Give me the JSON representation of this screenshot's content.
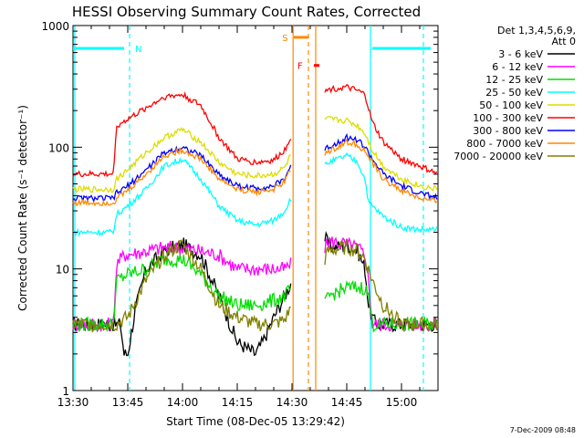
{
  "chart_data": {
    "type": "line",
    "title": "HESSI Observing Summary Count Rates, Corrected",
    "xlabel": "Start Time (08-Dec-05 13:29:42)",
    "ylabel": "Corrected Count Rate (s⁻¹ detector⁻¹)",
    "yscale": "log",
    "ylim": [
      1,
      1000
    ],
    "xlim_minutes": [
      0,
      100
    ],
    "x_unit": "minutes after 13:30",
    "x_ticks": [
      {
        "min": 0,
        "label": "13:30"
      },
      {
        "min": 15,
        "label": "13:45"
      },
      {
        "min": 30,
        "label": "14:00"
      },
      {
        "min": 45,
        "label": "14:15"
      },
      {
        "min": 60,
        "label": "14:30"
      },
      {
        "min": 75,
        "label": "14:45"
      },
      {
        "min": 90,
        "label": "15:00"
      }
    ],
    "y_ticks": [
      {
        "value": 1,
        "label": "1"
      },
      {
        "value": 10,
        "label": "10"
      },
      {
        "value": 100,
        "label": "100"
      },
      {
        "value": 1000,
        "label": "1000"
      }
    ],
    "legend_title": [
      "Det 1,3,4,5,6,9,",
      "Att 0"
    ],
    "legend_placement": "right",
    "timestamp": "7-Dec-2009 08:48",
    "gap": [
      60.5,
      69
    ],
    "series": [
      {
        "name": "3 - 6 keV",
        "color": "#000000",
        "x": [
          0,
          13,
          14,
          15,
          17,
          20,
          25,
          30,
          35,
          40,
          45,
          50,
          52,
          55,
          58,
          60,
          69,
          70,
          72,
          75,
          78,
          80,
          81,
          82,
          83,
          90,
          95,
          100
        ],
        "y": [
          3.5,
          3.5,
          2,
          2,
          4.5,
          10,
          14,
          16,
          13,
          6,
          2.5,
          2,
          2.5,
          4,
          6,
          8,
          18,
          16,
          15,
          16,
          14,
          10,
          5,
          4,
          3.5,
          3.5,
          3.5,
          3.5
        ]
      },
      {
        "name": "6 - 12 keV",
        "color": "#ff00ff",
        "x": [
          0,
          11,
          12,
          14,
          20,
          25,
          30,
          35,
          40,
          45,
          50,
          55,
          58,
          60,
          69,
          70,
          75,
          78,
          80,
          81,
          82,
          90,
          100
        ],
        "y": [
          3.5,
          3.5,
          11,
          13,
          14,
          15,
          15,
          14,
          13,
          10,
          10,
          10,
          10,
          11,
          15,
          17,
          16,
          15,
          13,
          8,
          3.5,
          3.5,
          3.5
        ]
      },
      {
        "name": "12 - 25 keV",
        "color": "#00dd00",
        "x": [
          0,
          11,
          12,
          15,
          20,
          25,
          30,
          35,
          40,
          45,
          50,
          55,
          58,
          60,
          69,
          70,
          75,
          80,
          81,
          82,
          90,
          100
        ],
        "y": [
          3.5,
          3.5,
          8,
          9,
          10,
          12,
          12,
          9,
          6,
          5,
          5,
          5.5,
          6,
          7,
          5,
          6,
          7,
          7,
          6,
          3.5,
          3.5,
          3.5
        ]
      },
      {
        "name": "25 - 50 keV",
        "color": "#00ffff",
        "x": [
          0,
          11,
          12,
          15,
          20,
          25,
          30,
          35,
          40,
          45,
          50,
          55,
          58,
          60,
          69,
          70,
          75,
          78,
          80,
          81,
          85,
          90,
          95,
          100
        ],
        "y": [
          20,
          20,
          28,
          33,
          45,
          70,
          80,
          55,
          33,
          25,
          23,
          25,
          30,
          40,
          70,
          75,
          85,
          75,
          55,
          35,
          27,
          22,
          21,
          21
        ]
      },
      {
        "name": "50 - 100 keV",
        "color": "#dddd00",
        "x": [
          0,
          11,
          12,
          15,
          20,
          25,
          30,
          35,
          40,
          45,
          50,
          55,
          58,
          60,
          69,
          70,
          75,
          78,
          80,
          82,
          85,
          90,
          95,
          100
        ],
        "y": [
          45,
          45,
          55,
          65,
          90,
          120,
          140,
          110,
          75,
          60,
          58,
          60,
          68,
          90,
          165,
          170,
          165,
          150,
          130,
          95,
          70,
          55,
          48,
          45
        ]
      },
      {
        "name": "100 - 300 keV",
        "color": "#ff0000",
        "x": [
          0,
          11,
          12,
          15,
          20,
          25,
          30,
          35,
          40,
          45,
          50,
          55,
          58,
          60,
          69,
          70,
          75,
          78,
          80,
          82,
          85,
          90,
          95,
          100
        ],
        "y": [
          60,
          60,
          150,
          170,
          210,
          260,
          270,
          220,
          120,
          80,
          75,
          78,
          95,
          130,
          280,
          300,
          310,
          290,
          270,
          160,
          110,
          80,
          70,
          60
        ]
      },
      {
        "name": "300 - 800 keV",
        "color": "#0000ff",
        "x": [
          0,
          11,
          12,
          15,
          20,
          25,
          30,
          35,
          40,
          45,
          50,
          55,
          58,
          60,
          69,
          70,
          75,
          78,
          80,
          82,
          85,
          90,
          95,
          100
        ],
        "y": [
          38,
          38,
          42,
          48,
          65,
          90,
          100,
          85,
          60,
          48,
          46,
          48,
          55,
          75,
          95,
          100,
          120,
          115,
          100,
          80,
          60,
          48,
          42,
          38
        ]
      },
      {
        "name": "800 - 7000 keV",
        "color": "#ff8800",
        "x": [
          0,
          11,
          12,
          15,
          20,
          25,
          30,
          35,
          40,
          45,
          50,
          55,
          58,
          60,
          69,
          70,
          75,
          78,
          80,
          82,
          85,
          90,
          95,
          100
        ],
        "y": [
          35,
          35,
          38,
          44,
          60,
          85,
          95,
          80,
          55,
          45,
          43,
          45,
          52,
          70,
          88,
          92,
          110,
          105,
          92,
          74,
          55,
          44,
          38,
          35
        ]
      },
      {
        "name": "7000 - 20000 keV",
        "color": "#808000",
        "x": [
          0,
          11,
          12,
          15,
          20,
          25,
          30,
          35,
          40,
          45,
          50,
          55,
          58,
          60,
          69,
          70,
          75,
          78,
          80,
          82,
          85,
          90,
          95,
          100
        ],
        "y": [
          3.5,
          3.5,
          3.5,
          4,
          8,
          13,
          16,
          10,
          5,
          4,
          3.5,
          3.5,
          3.8,
          5,
          12,
          14,
          15,
          14,
          12,
          8,
          5,
          3.5,
          3.5,
          3.5
        ]
      }
    ],
    "annotations": [
      {
        "label": "N",
        "color": "#00ffff",
        "x_min": 15.5,
        "bar_from": 0,
        "bar_to": 14,
        "bar_y": 650
      },
      {
        "label": "S",
        "color": "#ff8800",
        "x_min": 60.3,
        "bar_from": 60.5,
        "bar_to": 64.5,
        "bar_y": 800
      },
      {
        "label": "F",
        "color": "#ff0000",
        "x_min": 64.5,
        "bar_from": 66,
        "bar_to": 67.5,
        "bar_y": 470
      }
    ],
    "vlines": [
      {
        "x_min": 0.5,
        "color": "#00ffff",
        "style": "solid"
      },
      {
        "x_min": 15.5,
        "color": "#00ffff",
        "style": "dashed"
      },
      {
        "x_min": 60.3,
        "color": "#ff8800",
        "style": "solid"
      },
      {
        "x_min": 64.5,
        "color": "#ff8800",
        "style": "dashed"
      },
      {
        "x_min": 66.5,
        "color": "#ff8800",
        "style": "solid"
      },
      {
        "x_min": 81.5,
        "color": "#00ffff",
        "style": "solid"
      },
      {
        "x_min": 96,
        "color": "#00ffff",
        "style": "dashed"
      }
    ],
    "right_bar": {
      "color": "#00ffff",
      "from": 82,
      "to": 98,
      "y": 650
    },
    "grid": false
  }
}
